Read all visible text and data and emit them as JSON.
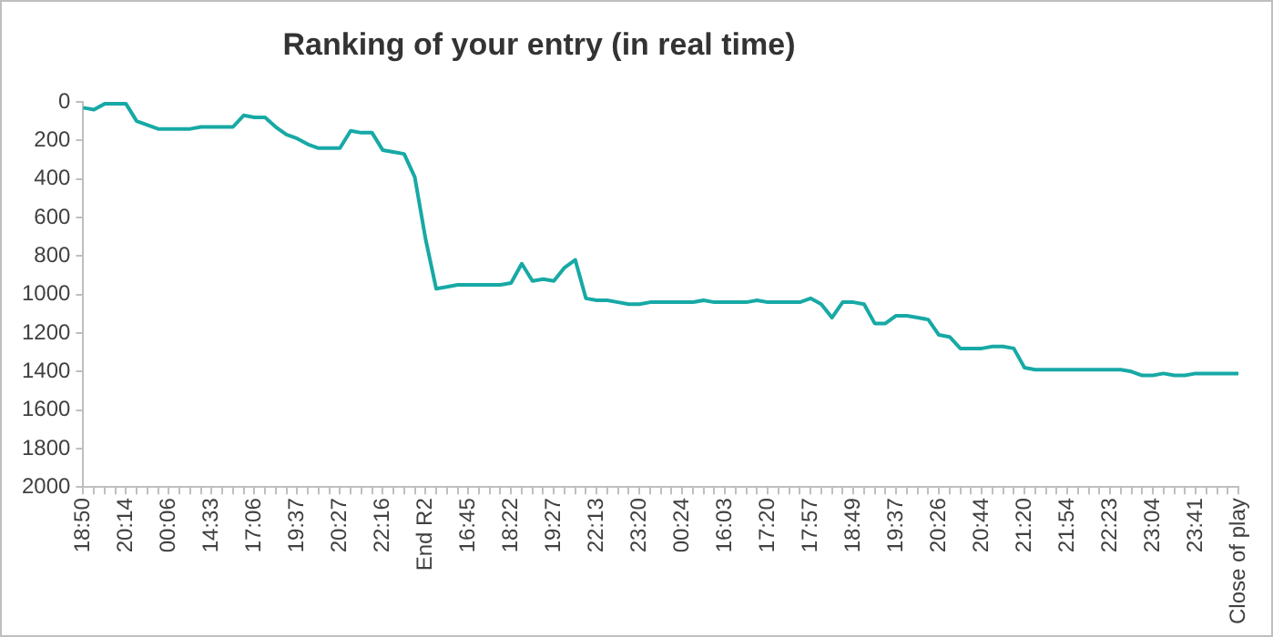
{
  "chart_data": {
    "type": "line",
    "title": "Ranking of your entry (in real time)",
    "categories": [
      "18:50",
      null,
      null,
      null,
      "20:14",
      null,
      null,
      null,
      "00:06",
      null,
      null,
      null,
      "14:33",
      null,
      null,
      null,
      "17:06",
      null,
      null,
      null,
      "19:37",
      null,
      null,
      null,
      "20:27",
      null,
      null,
      null,
      "22:16",
      null,
      null,
      null,
      "End R2",
      null,
      null,
      null,
      "16:45",
      null,
      null,
      null,
      "18:22",
      null,
      null,
      null,
      "19:27",
      null,
      null,
      null,
      "22:13",
      null,
      null,
      null,
      "23:20",
      null,
      null,
      null,
      "00:24",
      null,
      null,
      null,
      "16:03",
      null,
      null,
      null,
      "17:20",
      null,
      null,
      null,
      "17:57",
      null,
      null,
      null,
      "18:49",
      null,
      null,
      null,
      "19:37",
      null,
      null,
      null,
      "20:26",
      null,
      null,
      null,
      "20:44",
      null,
      null,
      null,
      "21:20",
      null,
      null,
      null,
      "21:54",
      null,
      null,
      null,
      "22:23",
      null,
      null,
      null,
      "23:04",
      null,
      null,
      null,
      "23:41",
      null,
      null,
      null,
      "Close of play"
    ],
    "series": [
      {
        "color": "#17a9a5",
        "values": [
          30,
          40,
          10,
          10,
          10,
          100,
          120,
          140,
          140,
          140,
          140,
          130,
          130,
          130,
          130,
          70,
          80,
          80,
          130,
          170,
          190,
          220,
          240,
          240,
          240,
          150,
          160,
          160,
          250,
          260,
          270,
          390,
          710,
          970,
          960,
          950,
          950,
          950,
          950,
          950,
          940,
          840,
          930,
          920,
          930,
          860,
          820,
          1020,
          1030,
          1030,
          1040,
          1050,
          1050,
          1040,
          1040,
          1040,
          1040,
          1040,
          1030,
          1040,
          1040,
          1040,
          1040,
          1030,
          1040,
          1040,
          1040,
          1040,
          1020,
          1050,
          1120,
          1040,
          1040,
          1050,
          1150,
          1150,
          1110,
          1110,
          1120,
          1130,
          1210,
          1220,
          1280,
          1280,
          1280,
          1270,
          1270,
          1280,
          1380,
          1390,
          1390,
          1390,
          1390,
          1390,
          1390,
          1390,
          1390,
          1390,
          1400,
          1420,
          1420,
          1410,
          1420,
          1420,
          1410,
          1410,
          1410,
          1410,
          1410
        ]
      }
    ],
    "ylim": [
      2000,
      0
    ],
    "yticks": [
      0,
      200,
      400,
      600,
      800,
      1000,
      1200,
      1400,
      1600,
      1800,
      2000
    ],
    "grid": false,
    "legend": false,
    "marker": "none",
    "line_style": "solid"
  }
}
